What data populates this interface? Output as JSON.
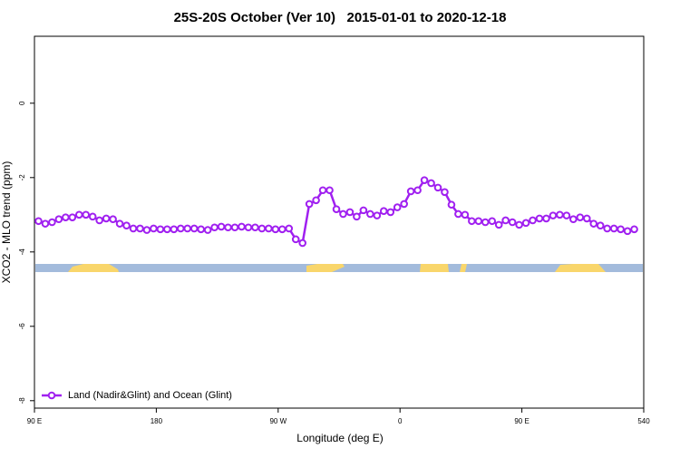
{
  "chart_data": {
    "type": "line",
    "title": "25S-20S October (Ver 10)   2015-01-01 to 2020-12-18",
    "xlabel": "Longitude (deg E)",
    "ylabel": "XCO2 - MLO trend (ppm)",
    "xlim": [
      90,
      540
    ],
    "ylim": [
      -8.2,
      1.8
    ],
    "xticks": [
      {
        "value": 90,
        "label": "90 E"
      },
      180,
      {
        "value": 270,
        "label": "90 W"
      },
      {
        "value": 360,
        "label": "0"
      },
      {
        "value": 450,
        "label": "90 E"
      },
      540
    ],
    "yticks": [
      0,
      -2,
      -4,
      -6,
      -8
    ],
    "legend": "bottom-left",
    "x": [
      93,
      98,
      103,
      108,
      113,
      118,
      123,
      128,
      133,
      138,
      143,
      148,
      153,
      158,
      163,
      168,
      173,
      178,
      183,
      188,
      193,
      198,
      203,
      208,
      213,
      218,
      223,
      228,
      233,
      238,
      243,
      248,
      253,
      258,
      263,
      268,
      273,
      278,
      283,
      288,
      293,
      298,
      303,
      308,
      313,
      318,
      323,
      328,
      333,
      338,
      343,
      348,
      353,
      358,
      363,
      368,
      373,
      378,
      383,
      388,
      393,
      398,
      403,
      408,
      413,
      418,
      423,
      428,
      433,
      438,
      443,
      448,
      453,
      458,
      463,
      468,
      473,
      478,
      483,
      488,
      493,
      498,
      503,
      508,
      513,
      518,
      523,
      528,
      533
    ],
    "series": [
      {
        "name": "Land (Nadir&Glint) and Ocean (Glint)",
        "color": "#a020f0",
        "values": [
          -3.17,
          -3.24,
          -3.2,
          -3.12,
          -3.07,
          -3.07,
          -3.0,
          -3.0,
          -3.05,
          -3.15,
          -3.1,
          -3.12,
          -3.24,
          -3.29,
          -3.37,
          -3.37,
          -3.41,
          -3.37,
          -3.39,
          -3.39,
          -3.39,
          -3.37,
          -3.37,
          -3.37,
          -3.39,
          -3.41,
          -3.34,
          -3.32,
          -3.34,
          -3.34,
          -3.32,
          -3.34,
          -3.34,
          -3.37,
          -3.37,
          -3.39,
          -3.39,
          -3.37,
          -3.66,
          -3.76,
          -2.71,
          -2.61,
          -2.34,
          -2.34,
          -2.85,
          -2.98,
          -2.93,
          -3.05,
          -2.88,
          -2.98,
          -3.02,
          -2.9,
          -2.93,
          -2.8,
          -2.71,
          -2.37,
          -2.34,
          -2.07,
          -2.15,
          -2.27,
          -2.39,
          -2.73,
          -2.98,
          -3.0,
          -3.17,
          -3.17,
          -3.2,
          -3.17,
          -3.27,
          -3.15,
          -3.2,
          -3.27,
          -3.22,
          -3.15,
          -3.1,
          -3.1,
          -3.02,
          -3.0,
          -3.02,
          -3.12,
          -3.07,
          -3.1,
          -3.24,
          -3.29,
          -3.37,
          -3.37,
          -3.39,
          -3.44,
          -3.39
        ]
      }
    ]
  }
}
